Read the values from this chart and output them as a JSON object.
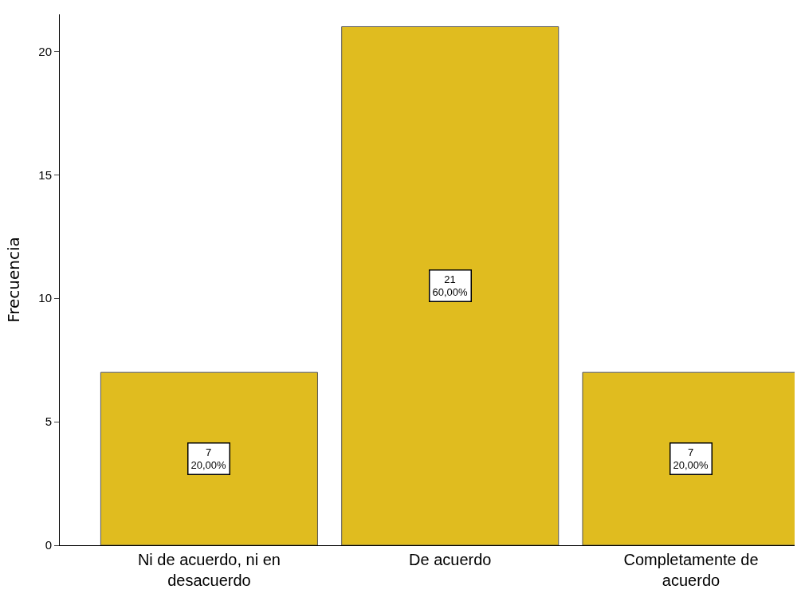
{
  "chart_data": {
    "type": "bar",
    "ylabel": "Frecuencia",
    "categories": [
      "Ni de acuerdo, ni en desacuerdo",
      "De acuerdo",
      "Completamente de acuerdo"
    ],
    "values": [
      7,
      21,
      7
    ],
    "color": "#e0bc1f",
    "value_labels": [
      "7\n20,00%",
      "21\n60,00%",
      "7\n20,00%"
    ],
    "ylim": [
      0,
      21.5
    ],
    "yticks": [
      0,
      5,
      10,
      15,
      20
    ],
    "grid": false,
    "legend": false
  }
}
